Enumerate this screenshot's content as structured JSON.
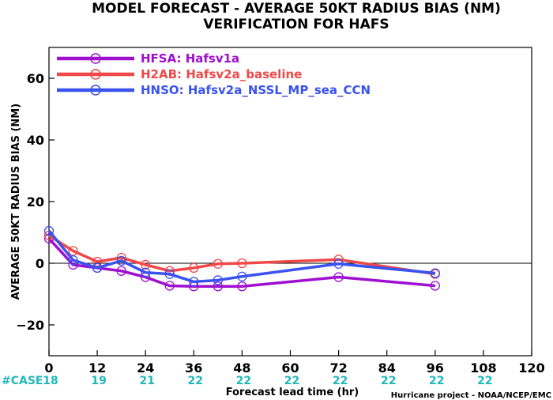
{
  "chart_data": {
    "type": "line",
    "title": "MODEL FORECAST - AVERAGE 50KT RADIUS BIAS (NM)",
    "subtitle": "VERIFICATION FOR HAFS",
    "xlabel": "Forecast lead time (hr)",
    "ylabel": "AVERAGE 50KT RADIUS BIAS (NM)",
    "xlim": [
      0,
      120
    ],
    "ylim": [
      -30,
      70
    ],
    "x_ticks": [
      0,
      12,
      24,
      36,
      48,
      60,
      72,
      84,
      96,
      108,
      120
    ],
    "y_ticks": [
      -20,
      0,
      20,
      40,
      60
    ],
    "grid": false,
    "legend_position": "top-left",
    "reference_line": 0,
    "series": [
      {
        "name": "HFSA: Hafsv1a",
        "color": "#9e0fd0",
        "x": [
          0,
          6,
          12,
          18,
          24,
          30,
          36,
          42,
          48,
          72,
          96
        ],
        "y": [
          8,
          -0.5,
          -1.5,
          -2.5,
          -4.5,
          -7.3,
          -7.5,
          -7.5,
          -7.5,
          -4.5,
          -7.3
        ]
      },
      {
        "name": "H2AB: Hafsv2a_baseline",
        "color": "#f04848",
        "x": [
          0,
          6,
          12,
          18,
          24,
          30,
          36,
          42,
          48,
          72,
          96
        ],
        "y": [
          9,
          4,
          0.5,
          1.8,
          -0.5,
          -2.5,
          -1.5,
          -0.2,
          0,
          1.2,
          -3.5
        ]
      },
      {
        "name": "HNSO: Hafsv2a_NSSL_MP_sea_CCN",
        "color": "#3a52f0",
        "x": [
          0,
          6,
          12,
          18,
          24,
          30,
          36,
          42,
          48,
          72,
          96
        ],
        "y": [
          10.5,
          1,
          -1.5,
          0.8,
          -3,
          -3.5,
          -6,
          -5.5,
          -4.3,
          -0.2,
          -3.2
        ]
      }
    ],
    "case_counts": {
      "label": "#CASE",
      "color": "#20b8b8",
      "x": [
        0,
        12,
        24,
        36,
        48,
        60,
        72,
        84,
        96,
        108
      ],
      "values": [
        "18",
        "19",
        "21",
        "22",
        "22",
        "22",
        "22",
        "22",
        "22",
        "22"
      ]
    },
    "credit": "Hurricane project - NOAA/NCEP/EMC"
  }
}
